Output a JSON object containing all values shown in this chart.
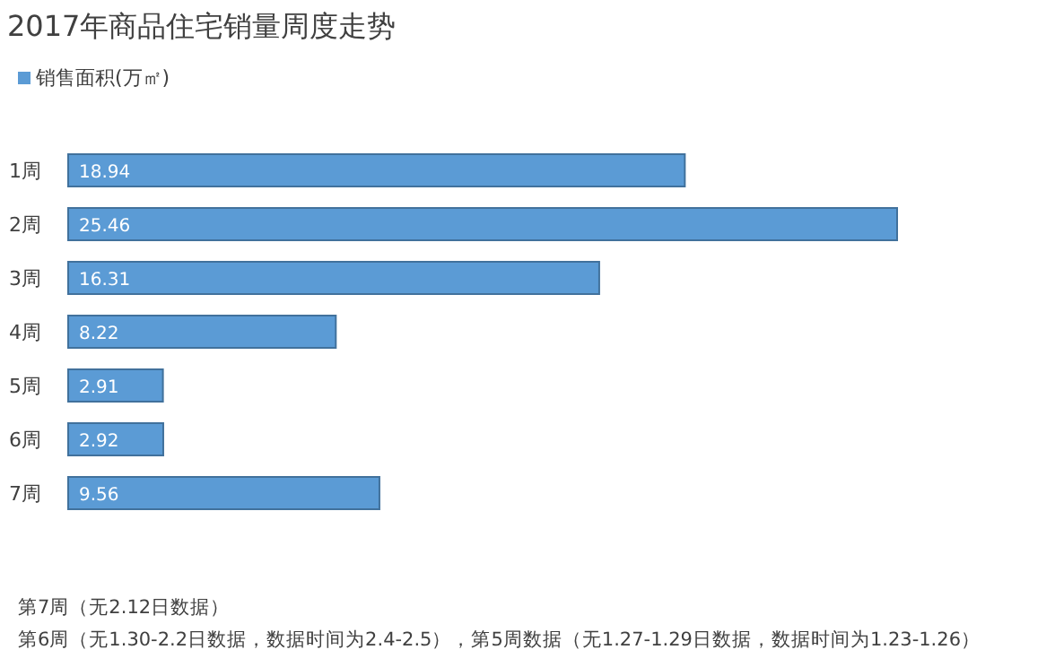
{
  "chart_data": {
    "type": "bar",
    "orientation": "horizontal",
    "title": "2017年商品住宅销量周度走势",
    "categories": [
      "1周",
      "2周",
      "3周",
      "4周",
      "5周",
      "6周",
      "7周"
    ],
    "series": [
      {
        "name": "销售面积(万㎡)",
        "color": "#5b9bd5",
        "values": [
          18.94,
          25.46,
          16.31,
          8.22,
          2.91,
          2.92,
          9.56
        ]
      }
    ],
    "data_labels": true,
    "legend": "top left",
    "annotations": [
      "第7周（无2.12日数据）",
      "第6周（无1.30-2.2日数据，数据时间为2.4-2.5），第5周数据（无1.27-1.29日数据，数据时间为1.23-1.26）"
    ]
  }
}
